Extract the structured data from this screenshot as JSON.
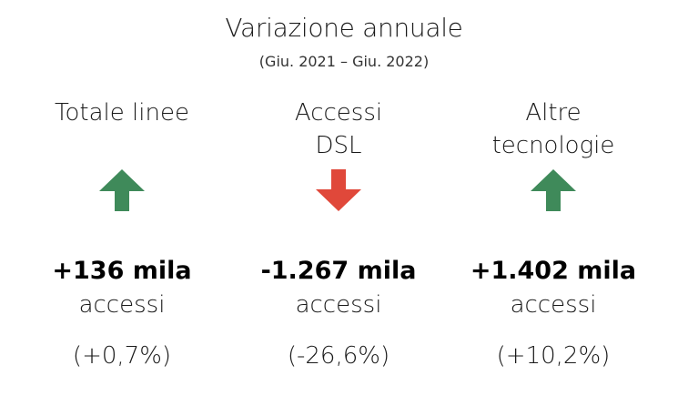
{
  "header": {
    "title": "Variazione annuale",
    "subtitle": "(Giu. 2021 – Giu. 2022)"
  },
  "colors": {
    "up": "#3f8a5a",
    "down": "#e0483a"
  },
  "columns": [
    {
      "label_line1": "Totale linee",
      "label_line2": "",
      "direction": "up",
      "arrow_icon": "arrow-up-icon",
      "value": "+136 mila",
      "unit": "accessi",
      "pct": "(+0,7%)"
    },
    {
      "label_line1": "Accessi",
      "label_line2": "DSL",
      "direction": "down",
      "arrow_icon": "arrow-down-icon",
      "value": "-1.267 mila",
      "unit": "accessi",
      "pct": "(-26,6%)"
    },
    {
      "label_line1": "Altre",
      "label_line2": "tecnologie",
      "direction": "up",
      "arrow_icon": "arrow-up-icon",
      "value": "+1.402 mila",
      "unit": "accessi",
      "pct": "(+10,2%)"
    }
  ]
}
